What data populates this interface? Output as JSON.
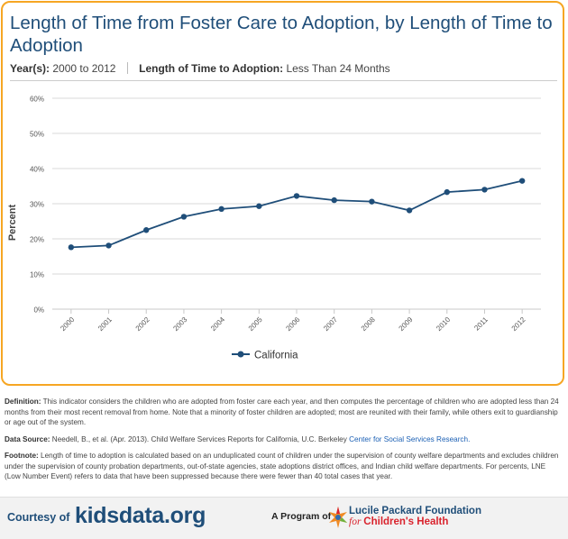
{
  "header": {
    "title": "Length of Time from Foster Care to Adoption, by Length of Time to Adoption",
    "years_label": "Year(s):",
    "years_value": "2000 to 2012",
    "filter_label": "Length of Time to Adoption:",
    "filter_value": "Less Than 24 Months"
  },
  "chart_data": {
    "type": "line",
    "title": "",
    "xlabel": "",
    "ylabel": "Percent",
    "ylim": [
      0,
      60
    ],
    "yticks": [
      0,
      10,
      20,
      30,
      40,
      50,
      60
    ],
    "ytick_labels": [
      "0%",
      "10%",
      "20%",
      "30%",
      "40%",
      "50%",
      "60%"
    ],
    "categories": [
      "2000",
      "2001",
      "2002",
      "2003",
      "2004",
      "2005",
      "2006",
      "2007",
      "2008",
      "2009",
      "2010",
      "2011",
      "2012"
    ],
    "series": [
      {
        "name": "California",
        "color": "#1f4e79",
        "values": [
          17.6,
          18.1,
          22.5,
          26.3,
          28.5,
          29.3,
          32.2,
          31.0,
          30.6,
          28.1,
          33.3,
          34.0,
          36.5
        ]
      }
    ],
    "legend": "bottom-center",
    "grid": true
  },
  "notes": {
    "definition_label": "Definition:",
    "definition_text": "This indicator considers the children who are adopted from foster care each year, and then computes the percentage of children who are adopted less than 24 months from their most recent removal from home. Note that a minority of foster children are adopted; most are reunited with their family, while others exit to guardianship or age out of the system.",
    "source_label": "Data Source:",
    "source_text": "Needell, B., et al. (Apr. 2013). Child Welfare Services Reports for California, U.C. Berkeley",
    "source_link": "Center for Social Services Research.",
    "footnote_label": "Footnote:",
    "footnote_text": "Length of time to adoption is calculated based on an unduplicated count of children under the supervision of county welfare departments and excludes children under the supervision of county probation departments, out-of-state agencies, state adoptions district offices, and Indian child welfare departments. For percents, LNE (Low Number Event) refers to data that have been suppressed because there were fewer than 40 total cases that year."
  },
  "footer": {
    "courtesy": "Courtesy of",
    "brand": "kidsdata.org",
    "program": "A Program of",
    "foundation_name": "Lucile Packard Foundation",
    "foundation_for": "for",
    "foundation_tag": "Children's Health"
  }
}
